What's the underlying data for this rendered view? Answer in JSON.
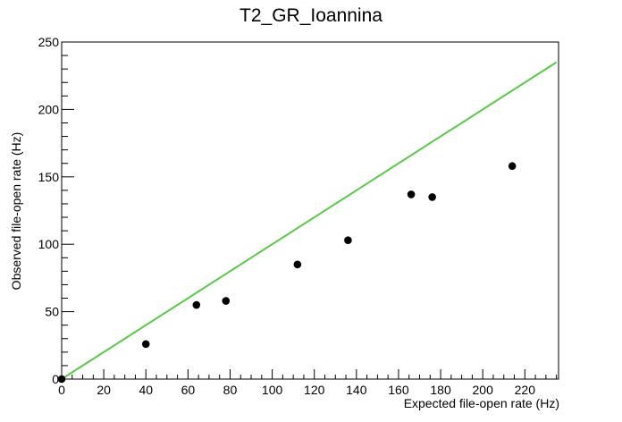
{
  "chart_data": {
    "type": "scatter",
    "title": "T2_GR_Ioannina",
    "xlabel": "Expected file-open rate (Hz)",
    "ylabel": "Observed file-open rate (Hz)",
    "xlim": [
      0,
      236
    ],
    "ylim": [
      0,
      250
    ],
    "x_ticks": [
      0,
      20,
      40,
      60,
      80,
      100,
      120,
      140,
      160,
      180,
      200,
      220
    ],
    "y_ticks": [
      0,
      50,
      100,
      150,
      200,
      250
    ],
    "grid": false,
    "legend": "none",
    "series": [
      {
        "kind": "points",
        "color": "#000000",
        "points": [
          {
            "x": 0,
            "y": 0
          },
          {
            "x": 40,
            "y": 26
          },
          {
            "x": 64,
            "y": 55
          },
          {
            "x": 78,
            "y": 58
          },
          {
            "x": 112,
            "y": 85
          },
          {
            "x": 136,
            "y": 103
          },
          {
            "x": 166,
            "y": 137
          },
          {
            "x": 176,
            "y": 135
          },
          {
            "x": 214,
            "y": 158
          }
        ]
      },
      {
        "kind": "line",
        "color": "#5bc84a",
        "points": [
          {
            "x": 0,
            "y": 0
          },
          {
            "x": 235,
            "y": 235
          }
        ]
      }
    ]
  }
}
